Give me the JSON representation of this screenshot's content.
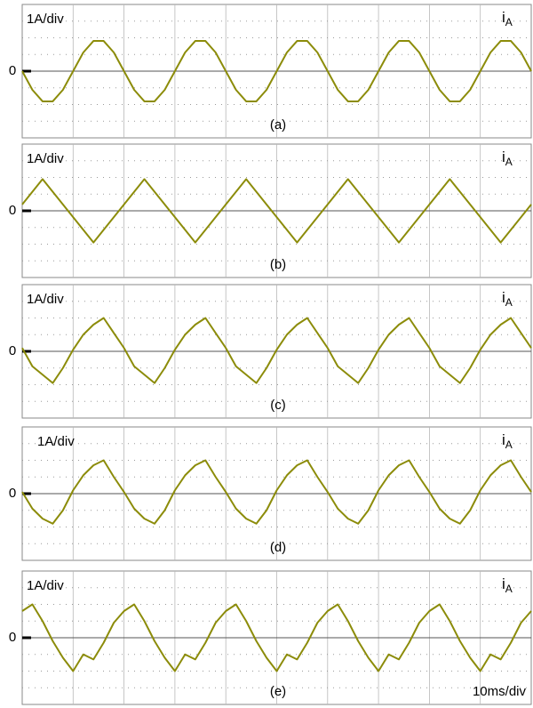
{
  "chart_data": [
    {
      "type": "line",
      "scale_label": "1A/div",
      "channel": "i",
      "channel_subscript": "A",
      "caption": "(a)",
      "x": [
        0,
        2,
        4,
        6,
        8,
        10,
        12,
        14,
        16,
        18,
        20,
        22,
        24,
        26,
        28,
        30,
        32,
        34,
        36,
        38,
        40,
        42,
        44,
        46,
        48,
        50,
        52,
        54,
        56,
        58,
        60,
        62,
        64,
        66,
        68,
        70,
        72,
        74,
        76,
        78,
        80,
        82,
        84,
        86,
        88,
        90,
        92,
        94,
        96,
        98,
        100
      ],
      "series": [
        {
          "color": "#8c8c0a",
          "values": [
            0,
            -1.12,
            -1.81,
            -1.81,
            -1.12,
            0,
            1.12,
            1.81,
            1.81,
            1.12,
            0,
            -1.12,
            -1.81,
            -1.81,
            -1.12,
            0,
            1.12,
            1.81,
            1.81,
            1.12,
            0,
            -1.12,
            -1.81,
            -1.81,
            -1.12,
            0,
            1.12,
            1.81,
            1.81,
            1.12,
            0,
            -1.12,
            -1.81,
            -1.81,
            -1.12,
            0,
            1.12,
            1.81,
            1.81,
            1.12,
            0,
            -1.12,
            -1.81,
            -1.81,
            -1.12,
            0,
            1.12,
            1.81,
            1.81,
            1.12,
            0
          ]
        }
      ],
      "xlim": [
        0,
        100
      ],
      "ylim": [
        -4,
        4
      ],
      "yticks": [
        0
      ]
    },
    {
      "type": "line",
      "scale_label": "1A/div",
      "channel": "i",
      "channel_subscript": "A",
      "caption": "(b)",
      "x": [
        0,
        2,
        4,
        6,
        8,
        10,
        12,
        14,
        16,
        18,
        20,
        22,
        24,
        26,
        28,
        30,
        32,
        34,
        36,
        38,
        40,
        42,
        44,
        46,
        48,
        50,
        52,
        54,
        56,
        58,
        60,
        62,
        64,
        66,
        68,
        70,
        72,
        74,
        76,
        78,
        80,
        82,
        84,
        86,
        88,
        90,
        92,
        94,
        96,
        98,
        100
      ],
      "series": [
        {
          "color": "#8c8c0a",
          "values": [
            0.38,
            1.14,
            1.9,
            1.14,
            0.38,
            -0.38,
            -1.14,
            -1.9,
            -1.14,
            -0.38,
            0.38,
            1.14,
            1.9,
            1.14,
            0.38,
            -0.38,
            -1.14,
            -1.9,
            -1.14,
            -0.38,
            0.38,
            1.14,
            1.9,
            1.14,
            0.38,
            -0.38,
            -1.14,
            -1.9,
            -1.14,
            -0.38,
            0.38,
            1.14,
            1.9,
            1.14,
            0.38,
            -0.38,
            -1.14,
            -1.9,
            -1.14,
            -0.38,
            0.38,
            1.14,
            1.9,
            1.14,
            0.38,
            -0.38,
            -1.14,
            -1.9,
            -1.14,
            -0.38,
            0.38
          ]
        }
      ],
      "xlim": [
        0,
        100
      ],
      "ylim": [
        -4,
        4
      ],
      "yticks": [
        0
      ]
    },
    {
      "type": "line",
      "scale_label": "1A/div",
      "channel": "i",
      "channel_subscript": "A",
      "caption": "(c)",
      "x": [
        0,
        2,
        4,
        6,
        8,
        10,
        12,
        14,
        16,
        18,
        20,
        22,
        24,
        26,
        28,
        30,
        32,
        34,
        36,
        38,
        40,
        42,
        44,
        46,
        48,
        50,
        52,
        54,
        56,
        58,
        60,
        62,
        64,
        66,
        68,
        70,
        72,
        74,
        76,
        78,
        80,
        82,
        84,
        86,
        88,
        90,
        92,
        94,
        96,
        98,
        100
      ],
      "series": [
        {
          "color": "#8c8c0a",
          "values": [
            0.2,
            -0.9,
            -1.4,
            -1.9,
            -1.0,
            0.1,
            1.0,
            1.6,
            2.0,
            1.1,
            0.2,
            -0.9,
            -1.4,
            -1.9,
            -1.0,
            0.1,
            1.0,
            1.6,
            2.0,
            1.1,
            0.2,
            -0.9,
            -1.4,
            -1.9,
            -1.0,
            0.1,
            1.0,
            1.6,
            2.0,
            1.1,
            0.2,
            -0.9,
            -1.4,
            -1.9,
            -1.0,
            0.1,
            1.0,
            1.6,
            2.0,
            1.1,
            0.2,
            -0.9,
            -1.4,
            -1.9,
            -1.0,
            0.1,
            1.0,
            1.6,
            2.0,
            1.1,
            0.2
          ]
        }
      ],
      "xlim": [
        0,
        100
      ],
      "ylim": [
        -4,
        4
      ],
      "yticks": [
        0
      ]
    },
    {
      "type": "line",
      "scale_label": "1A/div",
      "channel": "i",
      "channel_subscript": "A",
      "caption": "(d)",
      "x": [
        0,
        2,
        4,
        6,
        8,
        10,
        12,
        14,
        16,
        18,
        20,
        22,
        24,
        26,
        28,
        30,
        32,
        34,
        36,
        38,
        40,
        42,
        44,
        46,
        48,
        50,
        52,
        54,
        56,
        58,
        60,
        62,
        64,
        66,
        68,
        70,
        72,
        74,
        76,
        78,
        80,
        82,
        84,
        86,
        88,
        90,
        92,
        94,
        96,
        98,
        100
      ],
      "series": [
        {
          "color": "#8c8c0a",
          "values": [
            0.1,
            -0.9,
            -1.5,
            -1.8,
            -1.0,
            0.2,
            1.1,
            1.7,
            2.0,
            1.0,
            0.1,
            -0.9,
            -1.5,
            -1.8,
            -1.0,
            0.2,
            1.1,
            1.7,
            2.0,
            1.0,
            0.1,
            -0.9,
            -1.5,
            -1.8,
            -1.0,
            0.2,
            1.1,
            1.7,
            2.0,
            1.0,
            0.1,
            -0.9,
            -1.5,
            -1.8,
            -1.0,
            0.2,
            1.1,
            1.7,
            2.0,
            1.0,
            0.1,
            -0.9,
            -1.5,
            -1.8,
            -1.0,
            0.2,
            1.1,
            1.7,
            2.0,
            1.0,
            0.1
          ]
        }
      ],
      "xlim": [
        0,
        100
      ],
      "ylim": [
        -4,
        4
      ],
      "yticks": [
        0
      ]
    },
    {
      "type": "line",
      "scale_label": "1A/div",
      "channel": "i",
      "channel_subscript": "A",
      "caption": "(e)",
      "annotation": "10ms/div",
      "x": [
        0,
        2,
        4,
        6,
        8,
        10,
        12,
        14,
        16,
        18,
        20,
        22,
        24,
        26,
        28,
        30,
        32,
        34,
        36,
        38,
        40,
        42,
        44,
        46,
        48,
        50,
        52,
        54,
        56,
        58,
        60,
        62,
        64,
        66,
        68,
        70,
        72,
        74,
        76,
        78,
        80,
        82,
        84,
        86,
        88,
        90,
        92,
        94,
        96,
        98,
        100
      ],
      "series": [
        {
          "color": "#8c8c0a",
          "values": [
            1.6,
            2.0,
            1.0,
            -0.2,
            -1.2,
            -2.0,
            -1.0,
            -1.3,
            -0.3,
            0.9,
            1.6,
            2.0,
            1.0,
            -0.2,
            -1.2,
            -2.0,
            -1.0,
            -1.3,
            -0.3,
            0.9,
            1.6,
            2.0,
            1.0,
            -0.2,
            -1.2,
            -2.0,
            -1.0,
            -1.3,
            -0.3,
            0.9,
            1.6,
            2.0,
            1.0,
            -0.2,
            -1.2,
            -2.0,
            -1.0,
            -1.3,
            -0.3,
            0.9,
            1.6,
            2.0,
            1.0,
            -0.2,
            -1.2,
            -2.0,
            -1.0,
            -1.3,
            -0.3,
            0.9,
            1.6
          ]
        }
      ],
      "xlim": [
        0,
        100
      ],
      "ylim": [
        -4,
        4
      ],
      "yticks": [
        0
      ]
    }
  ]
}
